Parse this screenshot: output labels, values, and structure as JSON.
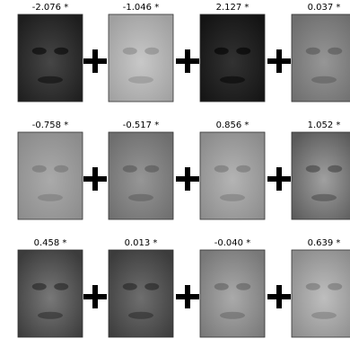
{
  "rows": [
    [
      "-2.076 *",
      "-1.046 *",
      "2.127 *",
      "0.037 *"
    ],
    [
      "-0.758 *",
      "-0.517 *",
      "0.856 *",
      "1.052 *"
    ],
    [
      "0.458 *",
      "0.013 *",
      "-0.040 *",
      "0.639 *"
    ]
  ]
}
